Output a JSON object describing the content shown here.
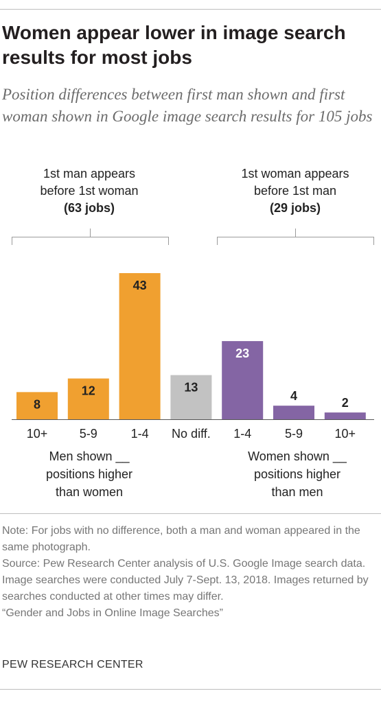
{
  "title": "Women appear lower in image search results for most jobs",
  "subtitle": "Position differences between first man shown and first woman shown in Google image search results for 105 jobs",
  "groups": {
    "men": {
      "line1": "1st man appears",
      "line2": "before 1st woman",
      "count": "(63 jobs)"
    },
    "women": {
      "line1": "1st woman appears",
      "line2": "before 1st man",
      "count": "(29 jobs)"
    }
  },
  "sublabels": {
    "men": {
      "line1": "Men shown __",
      "line2": "positions higher",
      "line3": "than women"
    },
    "women": {
      "line1": "Women shown __",
      "line2": "positions higher",
      "line3": "than men"
    }
  },
  "colors": {
    "men": "#f0a030",
    "none": "#c2c2c2",
    "women": "#8465a4",
    "text_dark": "#222222",
    "text_light": "#ffffff"
  },
  "chart_data": {
    "type": "bar",
    "title": "Women appear lower in image search results for most jobs",
    "categories": [
      "10+",
      "5-9",
      "1-4",
      "No diff.",
      "1-4",
      "5-9",
      "10+"
    ],
    "values": [
      8,
      12,
      43,
      13,
      23,
      4,
      2
    ],
    "groups": [
      "men",
      "men",
      "men",
      "none",
      "women",
      "women",
      "women"
    ],
    "ylim": [
      0,
      43
    ],
    "xlabel": "",
    "ylabel": "",
    "grid": false,
    "legend": "none"
  },
  "notes": {
    "note": "Note: For jobs with no difference, both a man and woman appeared in the same photograph.",
    "source": "Source: Pew Research Center analysis of U.S. Google Image search data. Image searches were conducted July 7-Sept. 13, 2018. Images returned by searches conducted at other times may differ.",
    "report": "“Gender and Jobs in Online Image Searches”"
  },
  "brand": "PEW RESEARCH CENTER"
}
